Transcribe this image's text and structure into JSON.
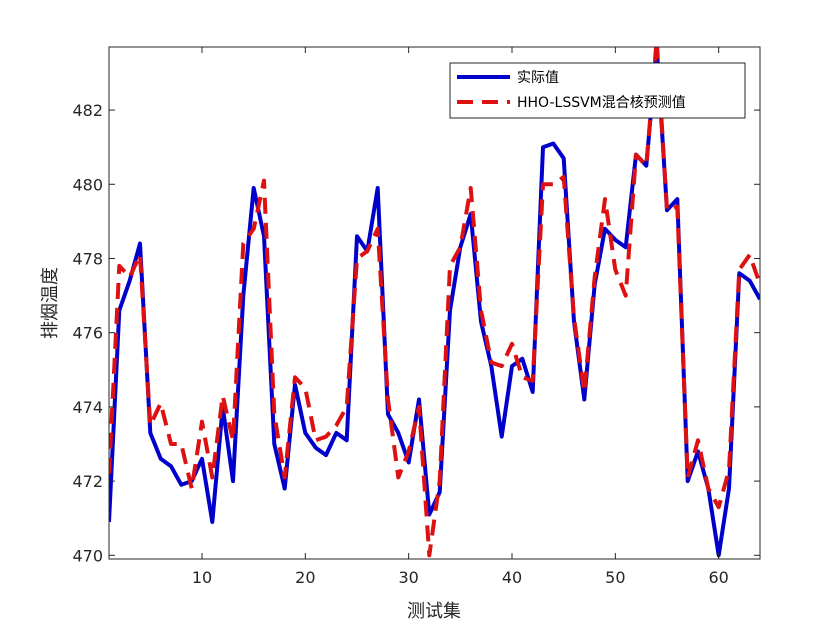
{
  "chart_data": {
    "type": "line",
    "title": "",
    "xlabel": "测试集",
    "ylabel": "排烟温度",
    "xlim": [
      1,
      64
    ],
    "ylim": [
      469.9,
      483.7
    ],
    "xticks": [
      10,
      20,
      30,
      40,
      50,
      60
    ],
    "yticks": [
      470,
      472,
      474,
      476,
      478,
      480,
      482
    ],
    "grid": false,
    "legend_position": "top-right",
    "x": [
      1,
      2,
      3,
      4,
      5,
      6,
      7,
      8,
      9,
      10,
      11,
      12,
      13,
      14,
      15,
      16,
      17,
      18,
      19,
      20,
      21,
      22,
      23,
      24,
      25,
      26,
      27,
      28,
      29,
      30,
      31,
      32,
      33,
      34,
      35,
      36,
      37,
      38,
      39,
      40,
      41,
      42,
      43,
      44,
      45,
      46,
      47,
      48,
      49,
      50,
      51,
      52,
      53,
      54,
      55,
      56,
      57,
      58,
      59,
      60,
      61,
      62,
      63,
      64
    ],
    "series": [
      {
        "name": "实际值",
        "color": "#0000CC",
        "dash": "solid",
        "values": [
          470.9,
          476.6,
          477.4,
          478.4,
          473.3,
          472.6,
          472.4,
          471.9,
          472.0,
          472.6,
          470.9,
          474.0,
          472.0,
          477.0,
          479.9,
          478.6,
          473.0,
          471.8,
          474.6,
          473.3,
          472.9,
          472.7,
          473.3,
          473.1,
          478.6,
          478.2,
          479.9,
          473.8,
          473.3,
          472.5,
          474.2,
          471.1,
          471.7,
          476.6,
          478.3,
          479.2,
          476.3,
          475.1,
          473.2,
          475.1,
          475.3,
          474.4,
          481.0,
          481.1,
          480.7,
          476.3,
          474.2,
          477.3,
          478.8,
          478.5,
          478.3,
          480.8,
          480.5,
          483.7,
          479.3,
          479.6,
          472.0,
          472.8,
          471.8,
          470.0,
          471.8,
          477.6,
          477.4,
          476.9
        ]
      },
      {
        "name": "HHO-LSSVM混合核预测值",
        "color": "#DD1111",
        "dash": "dashed",
        "values": [
          472.2,
          477.8,
          477.5,
          478.1,
          473.5,
          474.1,
          473.0,
          473.0,
          471.8,
          473.6,
          472.1,
          474.3,
          473.1,
          478.4,
          478.8,
          480.1,
          473.8,
          472.1,
          474.8,
          474.5,
          473.1,
          473.2,
          473.5,
          474.0,
          478.0,
          478.2,
          478.8,
          474.2,
          472.1,
          472.8,
          474.0,
          470.0,
          472.0,
          477.8,
          478.3,
          479.9,
          476.6,
          475.2,
          475.1,
          475.7,
          474.8,
          474.7,
          480.0,
          480.0,
          480.2,
          476.4,
          474.4,
          477.5,
          479.6,
          477.7,
          477.0,
          480.8,
          480.5,
          483.9,
          479.3,
          479.4,
          472.1,
          473.1,
          471.8,
          471.3,
          472.3,
          477.7,
          478.1,
          477.3
        ]
      }
    ]
  }
}
